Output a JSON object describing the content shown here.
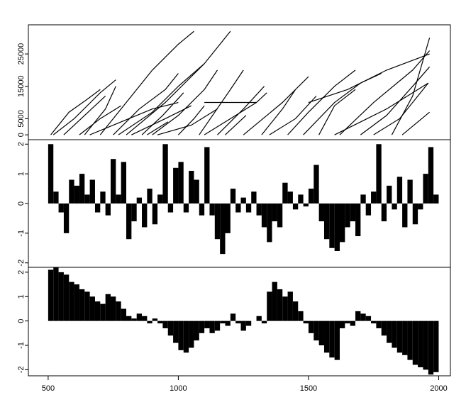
{
  "chart_data": [
    {
      "type": "line",
      "color": "#000000",
      "xlim": [
        424,
        2045
      ],
      "ylim": [
        -1500,
        34000
      ],
      "yticks": [
        0,
        5000,
        15000,
        25000
      ],
      "series": [
        {
          "x": [
            510,
            580,
            650,
            700
          ],
          "values": [
            0,
            7000,
            11000,
            14000
          ]
        },
        {
          "x": [
            520,
            600,
            700,
            760
          ],
          "values": [
            0,
            5000,
            13000,
            17000
          ]
        },
        {
          "x": [
            560,
            640,
            720
          ],
          "values": [
            0,
            6000,
            12000
          ]
        },
        {
          "x": [
            620,
            700,
            780
          ],
          "values": [
            0,
            5000,
            9000
          ]
        },
        {
          "x": [
            640,
            720,
            760
          ],
          "values": [
            0,
            8000,
            15000
          ]
        },
        {
          "x": [
            660,
            780,
            900,
            1000
          ],
          "values": [
            0,
            4000,
            8000,
            10000
          ]
        },
        {
          "x": [
            700,
            800,
            900,
            1000,
            1060
          ],
          "values": [
            0,
            10000,
            20000,
            28000,
            32000
          ]
        },
        {
          "x": [
            750,
            850,
            950,
            1000
          ],
          "values": [
            0,
            8000,
            14000,
            19000
          ]
        },
        {
          "x": [
            770,
            900,
            1000,
            1100
          ],
          "values": [
            0,
            7000,
            15000,
            22000
          ]
        },
        {
          "x": [
            800,
            950,
            1100,
            1200
          ],
          "values": [
            0,
            10000,
            22000,
            32000
          ]
        },
        {
          "x": [
            820,
            950,
            1050
          ],
          "values": [
            0,
            5000,
            9000
          ]
        },
        {
          "x": [
            860,
            940,
            1020
          ],
          "values": [
            0,
            6000,
            13000
          ]
        },
        {
          "x": [
            880,
            960
          ],
          "values": [
            0,
            4000
          ]
        },
        {
          "x": [
            900,
            1000,
            1100,
            1150
          ],
          "values": [
            0,
            6000,
            14000,
            20000
          ]
        },
        {
          "x": [
            920,
            1050,
            1150
          ],
          "values": [
            0,
            3000,
            8000
          ]
        },
        {
          "x": [
            1000,
            1060,
            1100
          ],
          "values": [
            0,
            5000,
            9000
          ]
        },
        {
          "x": [
            1080,
            1200,
            1250
          ],
          "values": [
            0,
            14000,
            20000
          ]
        },
        {
          "x": [
            1100,
            1200,
            1300,
            1340
          ],
          "values": [
            0,
            5000,
            10000,
            13000
          ]
        },
        {
          "x": [
            1150,
            1250,
            1330
          ],
          "values": [
            0,
            8000,
            15000
          ]
        },
        {
          "x": [
            1180,
            1260
          ],
          "values": [
            0,
            6000
          ]
        },
        {
          "x": [
            1250,
            1400,
            1500
          ],
          "values": [
            0,
            10000,
            18000
          ]
        },
        {
          "x": [
            1320,
            1400,
            1450
          ],
          "values": [
            0,
            8000,
            14000
          ]
        },
        {
          "x": [
            1350,
            1450,
            1530
          ],
          "values": [
            0,
            5000,
            12000
          ]
        },
        {
          "x": [
            1420,
            1500,
            1600,
            1680
          ],
          "values": [
            0,
            7000,
            15000,
            20000
          ]
        },
        {
          "x": [
            1480,
            1600,
            1700,
            1780
          ],
          "values": [
            0,
            10000,
            16000,
            19000
          ]
        },
        {
          "x": [
            1540,
            1600,
            1680
          ],
          "values": [
            0,
            9000,
            14000
          ]
        },
        {
          "x": [
            1600,
            1700,
            1800,
            1960
          ],
          "values": [
            0,
            4000,
            8000,
            16000
          ]
        },
        {
          "x": [
            1620,
            1750,
            1900,
            1965
          ],
          "values": [
            0,
            10000,
            20000,
            26000
          ]
        },
        {
          "x": [
            1700,
            1800,
            1900,
            1965
          ],
          "values": [
            0,
            6000,
            15000,
            21000
          ]
        },
        {
          "x": [
            1750,
            1850,
            1960
          ],
          "values": [
            0,
            5000,
            16000
          ]
        },
        {
          "x": [
            1820,
            1900,
            1965
          ],
          "values": [
            0,
            12000,
            30000
          ]
        },
        {
          "x": [
            1860,
            1965
          ],
          "values": [
            0,
            7000
          ]
        },
        {
          "x": [
            1100,
            1300
          ],
          "values": [
            10000,
            10000
          ]
        },
        {
          "x": [
            1500,
            1650,
            1800,
            1965
          ],
          "values": [
            10000,
            14000,
            20000,
            25000
          ]
        }
      ]
    },
    {
      "type": "bar",
      "color": "#000000",
      "xlim": [
        424,
        2045
      ],
      "ylim": [
        -2.15,
        2.15
      ],
      "yticks": [
        -2,
        -1,
        0,
        1,
        2
      ],
      "x": [
        500,
        520,
        540,
        560,
        580,
        600,
        620,
        640,
        660,
        680,
        700,
        720,
        740,
        760,
        780,
        800,
        820,
        840,
        860,
        880,
        900,
        920,
        940,
        960,
        980,
        1000,
        1020,
        1040,
        1060,
        1080,
        1100,
        1120,
        1140,
        1160,
        1180,
        1200,
        1220,
        1240,
        1260,
        1280,
        1300,
        1320,
        1340,
        1360,
        1380,
        1400,
        1420,
        1440,
        1460,
        1480,
        1500,
        1520,
        1540,
        1560,
        1580,
        1600,
        1620,
        1640,
        1660,
        1680,
        1700,
        1720,
        1740,
        1760,
        1780,
        1800,
        1820,
        1840,
        1860,
        1880,
        1900,
        1920,
        1940,
        1960,
        1980
      ],
      "values": [
        2.0,
        0.4,
        -0.3,
        -1.0,
        0.8,
        0.6,
        1.0,
        0.3,
        0.8,
        -0.3,
        0.4,
        -0.4,
        1.5,
        0.3,
        1.4,
        -1.2,
        -0.6,
        0.2,
        -0.8,
        0.5,
        -0.7,
        0.3,
        2.0,
        -0.3,
        1.2,
        1.4,
        -0.3,
        1.1,
        0.8,
        -0.4,
        1.9,
        -0.4,
        -1.2,
        -1.7,
        -1.0,
        0.5,
        -0.3,
        0.2,
        -0.3,
        0.4,
        -0.4,
        -0.8,
        -1.3,
        -0.6,
        -0.8,
        0.7,
        0.4,
        -0.2,
        0.3,
        -0.1,
        0.5,
        1.3,
        -0.6,
        -1.2,
        -1.5,
        -1.6,
        -1.3,
        -0.8,
        -0.6,
        -1.1,
        0.3,
        -0.4,
        0.4,
        2.0,
        -0.6,
        0.6,
        -0.2,
        0.9,
        -0.8,
        0.8,
        -0.7,
        -0.2,
        1.0,
        1.9,
        0.3
      ]
    },
    {
      "type": "bar",
      "color": "#000000",
      "xlim": [
        424,
        2045
      ],
      "ylim": [
        -2.25,
        2.2
      ],
      "yticks": [
        -2,
        -1,
        0,
        1,
        2
      ],
      "xticks": [
        500,
        1000,
        1500,
        2000
      ],
      "x": [
        500,
        520,
        540,
        560,
        580,
        600,
        620,
        640,
        660,
        680,
        700,
        720,
        740,
        760,
        780,
        800,
        820,
        840,
        860,
        880,
        900,
        920,
        940,
        960,
        980,
        1000,
        1020,
        1040,
        1060,
        1080,
        1100,
        1120,
        1140,
        1160,
        1180,
        1200,
        1220,
        1240,
        1260,
        1280,
        1300,
        1320,
        1340,
        1360,
        1380,
        1400,
        1420,
        1440,
        1460,
        1480,
        1500,
        1520,
        1540,
        1560,
        1580,
        1600,
        1620,
        1640,
        1660,
        1680,
        1700,
        1720,
        1740,
        1760,
        1780,
        1800,
        1820,
        1840,
        1860,
        1880,
        1900,
        1920,
        1940,
        1960,
        1980
      ],
      "values": [
        2.1,
        2.2,
        2.0,
        1.9,
        1.6,
        1.5,
        1.3,
        1.2,
        1.0,
        0.8,
        0.7,
        1.1,
        1.0,
        0.8,
        0.5,
        0.2,
        0.1,
        0.3,
        0.2,
        -0.1,
        0.1,
        -0.1,
        -0.3,
        -0.6,
        -0.9,
        -1.2,
        -1.3,
        -1.1,
        -0.8,
        -0.5,
        -0.3,
        -0.5,
        -0.4,
        -0.1,
        -0.2,
        0.3,
        -0.1,
        -0.4,
        -0.2,
        0.0,
        0.2,
        -0.1,
        1.2,
        1.6,
        1.3,
        1.0,
        1.2,
        0.8,
        0.4,
        -0.1,
        -0.5,
        -0.8,
        -1.0,
        -1.3,
        -1.5,
        -1.6,
        -0.3,
        -0.1,
        -0.2,
        0.4,
        0.3,
        0.2,
        -0.1,
        -0.3,
        -0.6,
        -0.9,
        -1.1,
        -1.3,
        -1.4,
        -1.6,
        -1.8,
        -1.9,
        -2.0,
        -2.2,
        -2.1
      ]
    }
  ]
}
